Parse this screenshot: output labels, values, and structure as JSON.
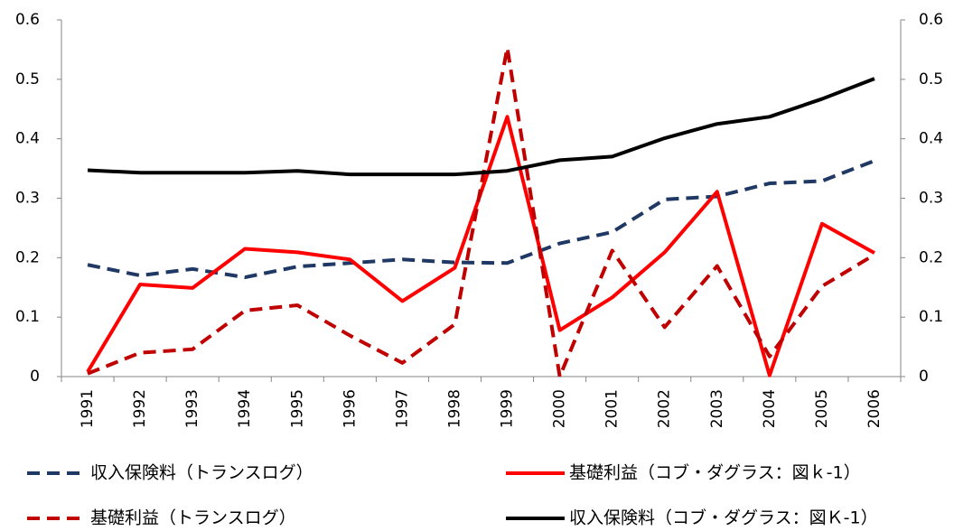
{
  "chart_data": {
    "type": "line",
    "categories": [
      "1991",
      "1992",
      "1993",
      "1994",
      "1995",
      "1996",
      "1997",
      "1998",
      "1999",
      "2000",
      "2001",
      "2002",
      "2003",
      "2004",
      "2005",
      "2006"
    ],
    "series": [
      {
        "name": "収入保険料（トランスログ）",
        "color": "#1f3864",
        "style": "dashed",
        "values": [
          0.188,
          0.17,
          0.181,
          0.167,
          0.185,
          0.191,
          0.197,
          0.192,
          0.191,
          0.224,
          0.243,
          0.298,
          0.303,
          0.325,
          0.329,
          0.363
        ]
      },
      {
        "name": "基礎利益（コブ・ダグラス：図ｋ-1）",
        "color": "#ff0000",
        "style": "solid",
        "values": [
          0.008,
          0.155,
          0.149,
          0.215,
          0.209,
          0.197,
          0.127,
          0.183,
          0.437,
          0.078,
          0.133,
          0.209,
          0.311,
          0.002,
          0.257,
          0.208
        ]
      },
      {
        "name": "基礎利益（トランスログ）",
        "color": "#c00000",
        "style": "dashed",
        "values": [
          0.005,
          0.04,
          0.046,
          0.111,
          0.12,
          0.069,
          0.023,
          0.088,
          0.553,
          0.0,
          0.212,
          0.083,
          0.186,
          0.034,
          0.152,
          0.205
        ]
      },
      {
        "name": "収入保険料（コブ・ダグラス：図Ｋ-1）",
        "color": "#000000",
        "style": "solid",
        "values": [
          0.347,
          0.343,
          0.343,
          0.343,
          0.346,
          0.34,
          0.34,
          0.34,
          0.346,
          0.364,
          0.37,
          0.401,
          0.425,
          0.437,
          0.467,
          0.501
        ]
      }
    ],
    "ylim": [
      0,
      0.6
    ],
    "yticks": [
      0,
      0.1,
      0.2,
      0.3,
      0.4,
      0.5,
      0.6
    ],
    "y2lim": [
      0,
      0.6
    ],
    "y2ticks": [
      0,
      0.1,
      0.2,
      0.3,
      0.4,
      0.5,
      0.6
    ],
    "grid": false
  }
}
